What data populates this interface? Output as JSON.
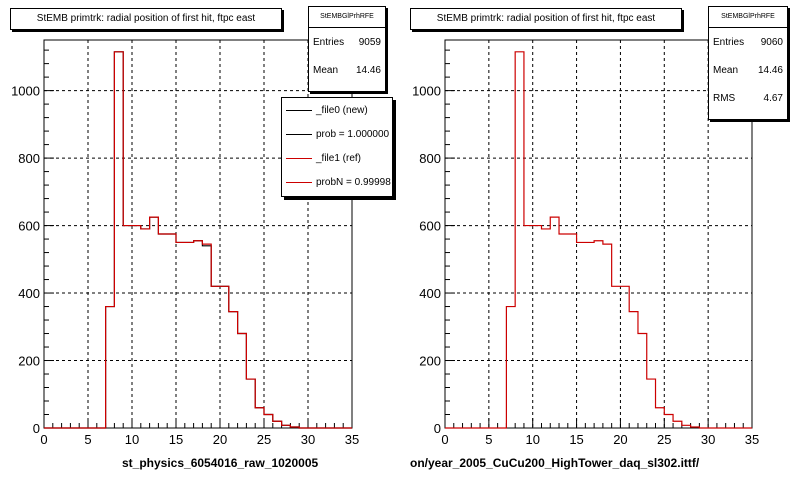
{
  "footer_text": "",
  "legend": {
    "entries": [
      {
        "label": "_file0 (new)",
        "color": "#000000"
      },
      {
        "label": "prob = 1.000000",
        "color": "#000000"
      },
      {
        "label": "_file1 (ref)",
        "color": "#cc0000"
      },
      {
        "label": "probN = 0.99998",
        "color": "#cc0000"
      }
    ]
  },
  "panels": [
    {
      "title": "StEMB primtrk: radial position of first hit, ftpc east",
      "stats": {
        "header": "StEMBGlPrhRFE",
        "rows": [
          {
            "label": "Entries",
            "value": "9059"
          },
          {
            "label": "Mean",
            "value": "14.46"
          }
        ]
      },
      "xtitle": "st_physics_6054016_raw_1020005"
    },
    {
      "title": "StEMB primtrk: radial position of first hit, ftpc east",
      "stats": {
        "header": "StEMBGlPrhRFE",
        "rows": [
          {
            "label": "Entries",
            "value": "9060"
          },
          {
            "label": "Mean",
            "value": "14.46"
          },
          {
            "label": "RMS",
            "value": "4.67"
          }
        ]
      },
      "xtitle": "on/year_2005_CuCu200_HighTower_daq_sl302.ittf/"
    }
  ],
  "chart_data": [
    {
      "type": "histogram",
      "title": "StEMB primtrk: radial position of first hit, ftpc east",
      "xlabel": "st_physics_6054016_raw_1020005",
      "ylabel": "",
      "xlim": [
        0,
        35
      ],
      "ylim": [
        0,
        1150
      ],
      "x_ticks": [
        0,
        5,
        10,
        15,
        20,
        25,
        30,
        35
      ],
      "y_ticks": [
        0,
        200,
        400,
        600,
        800,
        1000
      ],
      "grid": true,
      "bin_edges": [
        0,
        1,
        2,
        3,
        4,
        5,
        6,
        7,
        8,
        9,
        10,
        11,
        12,
        13,
        14,
        15,
        16,
        17,
        18,
        19,
        20,
        21,
        22,
        23,
        24,
        25,
        26,
        27,
        28,
        29,
        30,
        31,
        32,
        33,
        34,
        35
      ],
      "series": [
        {
          "name": "_file0 (new)",
          "color": "#000000",
          "values": [
            0,
            0,
            0,
            0,
            0,
            0,
            0,
            360,
            1115,
            600,
            600,
            590,
            625,
            575,
            575,
            550,
            550,
            555,
            540,
            420,
            420,
            345,
            280,
            145,
            60,
            40,
            20,
            8,
            3,
            0,
            0,
            0,
            0,
            0,
            0
          ]
        },
        {
          "name": "_file1 (ref)",
          "color": "#cc0000",
          "values": [
            0,
            0,
            0,
            0,
            0,
            0,
            0,
            360,
            1115,
            600,
            600,
            590,
            625,
            575,
            575,
            550,
            550,
            555,
            545,
            420,
            420,
            345,
            280,
            145,
            60,
            40,
            20,
            8,
            3,
            0,
            0,
            0,
            0,
            0,
            0
          ]
        }
      ]
    },
    {
      "type": "histogram",
      "title": "StEMB primtrk: radial position of first hit, ftpc east",
      "xlabel": "on/year_2005_CuCu200_HighTower_daq_sl302.ittf/",
      "ylabel": "",
      "xlim": [
        0,
        35
      ],
      "ylim": [
        0,
        1150
      ],
      "x_ticks": [
        0,
        5,
        10,
        15,
        20,
        25,
        30,
        35
      ],
      "y_ticks": [
        0,
        200,
        400,
        600,
        800,
        1000
      ],
      "grid": true,
      "bin_edges": [
        0,
        1,
        2,
        3,
        4,
        5,
        6,
        7,
        8,
        9,
        10,
        11,
        12,
        13,
        14,
        15,
        16,
        17,
        18,
        19,
        20,
        21,
        22,
        23,
        24,
        25,
        26,
        27,
        28,
        29,
        30,
        31,
        32,
        33,
        34,
        35
      ],
      "series": [
        {
          "name": "_file1 (ref)",
          "color": "#cc0000",
          "values": [
            0,
            0,
            0,
            0,
            0,
            0,
            0,
            360,
            1115,
            600,
            600,
            590,
            625,
            575,
            575,
            550,
            550,
            555,
            545,
            420,
            420,
            345,
            280,
            145,
            60,
            40,
            20,
            8,
            3,
            0,
            0,
            0,
            0,
            0,
            0
          ]
        }
      ]
    }
  ]
}
